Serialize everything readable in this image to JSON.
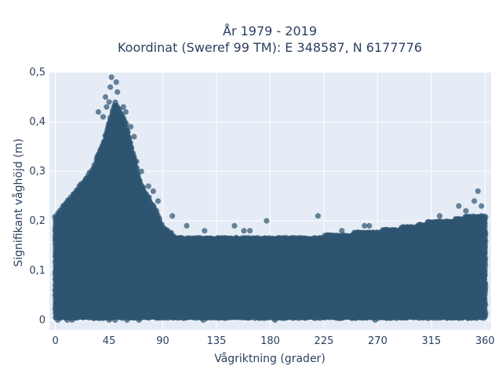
{
  "chart_data": {
    "type": "scatter",
    "title": "År 1979 - 2019",
    "subtitle": "Koordinat (Sweref 99 TM): E 348587, N 6177776",
    "xlabel": "Vågriktning (grader)",
    "ylabel": "Signifikant våghöjd (m)",
    "xlim": [
      -5,
      365
    ],
    "ylim": [
      -0.02,
      0.5
    ],
    "x_ticks": [
      0,
      45,
      90,
      135,
      180,
      225,
      270,
      315,
      360
    ],
    "x_tick_labels": [
      "0",
      "45",
      "90",
      "135",
      "180",
      "225",
      "270",
      "315",
      "360"
    ],
    "y_ticks": [
      0,
      0.1,
      0.2,
      0.3,
      0.4,
      0.5
    ],
    "y_tick_labels": [
      "0",
      "0,1",
      "0,2",
      "0,3",
      "0,4",
      "0,5"
    ],
    "grid": true,
    "marker_color": "#2e5470",
    "plot_background": "#e5ecf6",
    "upper_envelope": {
      "direction_deg": [
        0,
        10,
        20,
        30,
        35,
        40,
        45,
        50,
        55,
        60,
        65,
        70,
        75,
        80,
        85,
        90,
        100,
        135,
        180,
        225,
        270,
        300,
        315,
        330,
        345,
        360
      ],
      "max_height_m": [
        0.21,
        0.24,
        0.27,
        0.3,
        0.33,
        0.36,
        0.4,
        0.44,
        0.42,
        0.39,
        0.34,
        0.29,
        0.26,
        0.24,
        0.22,
        0.19,
        0.17,
        0.17,
        0.17,
        0.17,
        0.18,
        0.19,
        0.2,
        0.2,
        0.21,
        0.21
      ]
    },
    "outliers": [
      {
        "x": 45,
        "y": 0.44
      },
      {
        "x": 46,
        "y": 0.47
      },
      {
        "x": 47,
        "y": 0.49
      },
      {
        "x": 51,
        "y": 0.48
      },
      {
        "x": 52,
        "y": 0.46
      },
      {
        "x": 42,
        "y": 0.45
      },
      {
        "x": 43,
        "y": 0.43
      },
      {
        "x": 57,
        "y": 0.43
      },
      {
        "x": 59,
        "y": 0.42
      },
      {
        "x": 36,
        "y": 0.42
      },
      {
        "x": 40,
        "y": 0.41
      },
      {
        "x": 63,
        "y": 0.39
      },
      {
        "x": 66,
        "y": 0.37
      },
      {
        "x": 68,
        "y": 0.32
      },
      {
        "x": 72,
        "y": 0.3
      },
      {
        "x": 78,
        "y": 0.27
      },
      {
        "x": 82,
        "y": 0.26
      },
      {
        "x": 86,
        "y": 0.24
      },
      {
        "x": 98,
        "y": 0.21
      },
      {
        "x": 110,
        "y": 0.19
      },
      {
        "x": 125,
        "y": 0.18
      },
      {
        "x": 150,
        "y": 0.19
      },
      {
        "x": 158,
        "y": 0.18
      },
      {
        "x": 163,
        "y": 0.18
      },
      {
        "x": 177,
        "y": 0.2
      },
      {
        "x": 220,
        "y": 0.21
      },
      {
        "x": 240,
        "y": 0.18
      },
      {
        "x": 259,
        "y": 0.19
      },
      {
        "x": 263,
        "y": 0.19
      },
      {
        "x": 322,
        "y": 0.21
      },
      {
        "x": 338,
        "y": 0.23
      },
      {
        "x": 344,
        "y": 0.22
      },
      {
        "x": 351,
        "y": 0.24
      },
      {
        "x": 354,
        "y": 0.26
      },
      {
        "x": 357,
        "y": 0.23
      },
      {
        "x": 2,
        "y": 0.0
      },
      {
        "x": 10,
        "y": 0.0
      },
      {
        "x": 14,
        "y": 0.0
      },
      {
        "x": 45,
        "y": 0.0
      },
      {
        "x": 50,
        "y": 0.0
      },
      {
        "x": 60,
        "y": 0.0
      },
      {
        "x": 70,
        "y": 0.0
      },
      {
        "x": 124,
        "y": 0.0
      },
      {
        "x": 184,
        "y": 0.0
      },
      {
        "x": 268,
        "y": 0.0
      }
    ]
  }
}
